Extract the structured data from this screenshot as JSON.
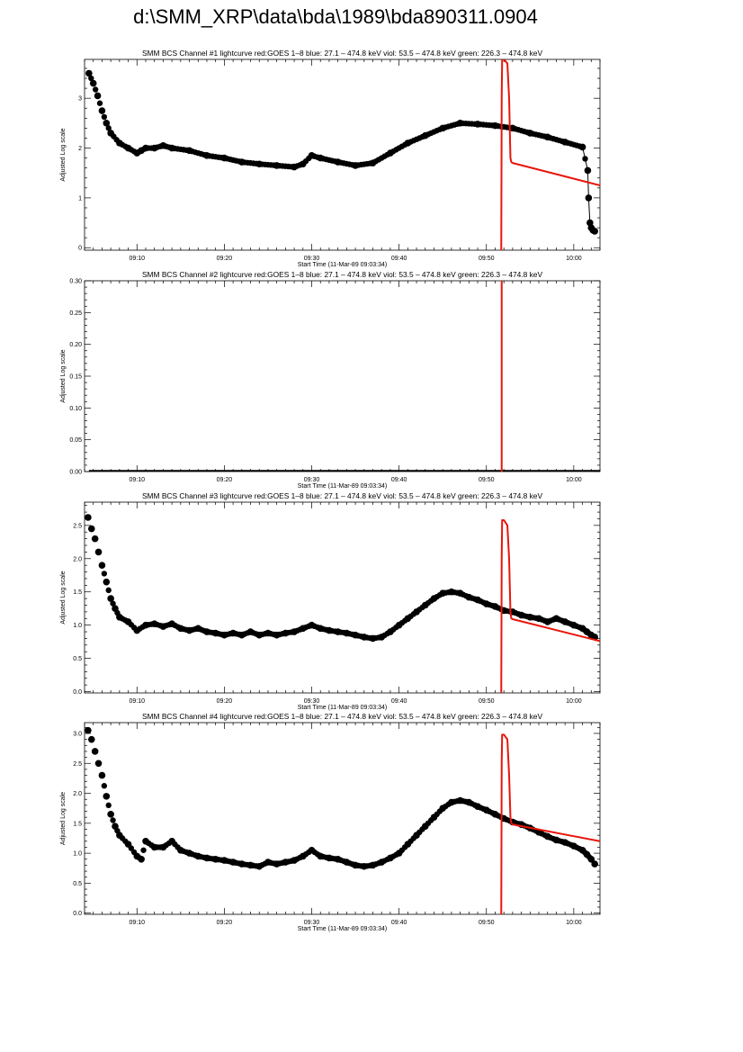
{
  "page": {
    "title": "d:\\SMM_XRP\\data\\bda\\1989\\bda890311.0904"
  },
  "colors": {
    "data": "#000000",
    "goes": "#e8160c",
    "axis": "#000000"
  },
  "chart_data": [
    {
      "type": "scatter",
      "title": "SMM BCS Channel #1 lightcurve  red:GOES 1–8  blue: 27.1 – 474.8 keV  viol: 53.5 – 474.8 keV  green: 226.3 – 474.8 keV",
      "xlabel": "Start Time (11-Mar-89 09:03:34)",
      "ylabel": "Adjusted Log scale",
      "xlim_minutes": [
        544,
        603
      ],
      "ylim": [
        -0.05,
        3.78
      ],
      "xticks": [
        {
          "minute": 550,
          "label": "09:10"
        },
        {
          "minute": 560,
          "label": "09:20"
        },
        {
          "minute": 570,
          "label": "09:30"
        },
        {
          "minute": 580,
          "label": "09:40"
        },
        {
          "minute": 590,
          "label": "09:50"
        },
        {
          "minute": 600,
          "label": "10:00"
        }
      ],
      "yticks": [
        {
          "v": 0,
          "label": "0"
        },
        {
          "v": 1,
          "label": "1"
        },
        {
          "v": 2,
          "label": "2"
        },
        {
          "v": 3,
          "label": "3"
        }
      ],
      "ytick_step": 1,
      "data_series": {
        "name": "",
        "x": [
          544.5,
          545,
          545.5,
          546,
          546.5,
          547,
          548,
          549,
          550,
          550.5,
          551,
          552,
          553,
          554,
          556,
          558,
          560,
          562,
          564,
          566,
          568,
          569,
          570,
          571,
          573,
          575,
          577,
          579,
          581,
          583,
          585,
          587,
          589,
          591,
          593,
          595,
          597,
          599,
          601,
          601.6,
          601.7,
          601.85,
          602,
          602.2,
          602.4
        ],
        "y": [
          3.5,
          3.3,
          3.05,
          2.75,
          2.5,
          2.3,
          2.1,
          2.0,
          1.9,
          1.95,
          2.0,
          2.0,
          2.05,
          2.0,
          1.95,
          1.85,
          1.8,
          1.72,
          1.68,
          1.65,
          1.62,
          1.68,
          1.85,
          1.8,
          1.72,
          1.65,
          1.7,
          1.9,
          2.1,
          2.25,
          2.4,
          2.5,
          2.48,
          2.45,
          2.4,
          2.3,
          2.22,
          2.12,
          2.02,
          1.55,
          1.0,
          0.5,
          0.4,
          0.35,
          0.33
        ],
        "connect_from_index": 38
      },
      "goes_series": {
        "name": "",
        "x": [
          591.7,
          591.75,
          591.8,
          592.0,
          592.4,
          592.6,
          592.75,
          592.85,
          593.0,
          603.0
        ],
        "y": [
          -0.05,
          3.0,
          3.78,
          3.78,
          3.7,
          3.0,
          1.8,
          1.72,
          1.7,
          1.25
        ]
      }
    },
    {
      "type": "scatter",
      "title": "SMM BCS Channel #2 lightcurve  red:GOES 1–8  blue: 27.1 – 474.8 keV  viol: 53.5 – 474.8 keV  green: 226.3 – 474.8 keV",
      "xlabel": "Start Time (11-Mar-89 09:03:34)",
      "ylabel": "Adjusted Log scale",
      "xlim_minutes": [
        544,
        603
      ],
      "ylim": [
        0,
        0.3
      ],
      "xticks": [
        {
          "minute": 550,
          "label": "09:10"
        },
        {
          "minute": 560,
          "label": "09:20"
        },
        {
          "minute": 570,
          "label": "09:30"
        },
        {
          "minute": 580,
          "label": "09:40"
        },
        {
          "minute": 590,
          "label": "09:50"
        },
        {
          "minute": 600,
          "label": "10:00"
        }
      ],
      "yticks": [
        {
          "v": 0,
          "label": "0.00"
        },
        {
          "v": 0.05,
          "label": "0.05"
        },
        {
          "v": 0.1,
          "label": "0.10"
        },
        {
          "v": 0.15,
          "label": "0.15"
        },
        {
          "v": 0.2,
          "label": "0.20"
        },
        {
          "v": 0.25,
          "label": "0.25"
        },
        {
          "v": 0.3,
          "label": "0.30"
        }
      ],
      "ytick_step": 0.05,
      "data_series": {
        "name": "",
        "x": [
          544.5,
          603
        ],
        "y": [
          0,
          0
        ],
        "flat": true
      },
      "goes_series": {
        "name": "",
        "x": [
          591.75,
          591.75
        ],
        "y": [
          0,
          0.3
        ]
      }
    },
    {
      "type": "scatter",
      "title": "SMM BCS Channel #3 lightcurve  red:GOES 1–8  blue: 27.1 – 474.8 keV  viol: 53.5 – 474.8 keV  green: 226.3 – 474.8 keV",
      "xlabel": "Start Time (11-Mar-89 09:03:34)",
      "ylabel": "Adjusted Log scale",
      "xlim_minutes": [
        544,
        603
      ],
      "ylim": [
        -0.02,
        2.85
      ],
      "xticks": [
        {
          "minute": 550,
          "label": "09:10"
        },
        {
          "minute": 560,
          "label": "09:20"
        },
        {
          "minute": 570,
          "label": "09:30"
        },
        {
          "minute": 580,
          "label": "09:40"
        },
        {
          "minute": 590,
          "label": "09:50"
        },
        {
          "minute": 600,
          "label": "10:00"
        }
      ],
      "yticks": [
        {
          "v": 0,
          "label": "0.0"
        },
        {
          "v": 0.5,
          "label": "0.5"
        },
        {
          "v": 1,
          "label": "1.0"
        },
        {
          "v": 1.5,
          "label": "1.5"
        },
        {
          "v": 2,
          "label": "2.0"
        },
        {
          "v": 2.5,
          "label": "2.5"
        }
      ],
      "ytick_step": 0.5,
      "data_series": {
        "name": "",
        "x": [
          544.4,
          544.8,
          545.2,
          545.6,
          546,
          546.5,
          547,
          547.5,
          548,
          549,
          550,
          551,
          552,
          553,
          554,
          555,
          556,
          557,
          558,
          559,
          560,
          561,
          562,
          563,
          564,
          565,
          566,
          567,
          568,
          569,
          570,
          571,
          572,
          573,
          574,
          575,
          576,
          577,
          578,
          579,
          580,
          581,
          582,
          583,
          584,
          585,
          586,
          587,
          588,
          589,
          590,
          591,
          592,
          593,
          594,
          595,
          596,
          597,
          598,
          599,
          600,
          601,
          601.5,
          602,
          602.4
        ],
        "y": [
          2.62,
          2.45,
          2.3,
          2.1,
          1.9,
          1.65,
          1.4,
          1.25,
          1.12,
          1.05,
          0.92,
          1.0,
          1.02,
          0.98,
          1.02,
          0.95,
          0.92,
          0.95,
          0.9,
          0.88,
          0.85,
          0.88,
          0.85,
          0.9,
          0.85,
          0.88,
          0.85,
          0.88,
          0.9,
          0.95,
          1.0,
          0.95,
          0.92,
          0.9,
          0.88,
          0.85,
          0.82,
          0.8,
          0.82,
          0.9,
          1.0,
          1.1,
          1.2,
          1.3,
          1.4,
          1.48,
          1.5,
          1.48,
          1.42,
          1.38,
          1.32,
          1.28,
          1.22,
          1.2,
          1.15,
          1.12,
          1.1,
          1.05,
          1.1,
          1.05,
          1.0,
          0.95,
          0.9,
          0.85,
          0.82
        ]
      },
      "goes_series": {
        "name": "",
        "x": [
          591.7,
          591.75,
          591.8,
          592.0,
          592.4,
          592.6,
          592.75,
          592.85,
          593.0,
          603.0
        ],
        "y": [
          -0.02,
          2.0,
          2.58,
          2.58,
          2.5,
          2.0,
          1.2,
          1.1,
          1.09,
          0.76
        ]
      }
    },
    {
      "type": "scatter",
      "title": "SMM BCS Channel #4 lightcurve  red:GOES 1–8  blue: 27.1 – 474.8 keV  viol: 53.5 – 474.8 keV  green: 226.3 – 474.8 keV",
      "xlabel": "Start Time (11-Mar-89 09:03:34)",
      "ylabel": "Adjusted Log scale",
      "xlim_minutes": [
        544,
        603
      ],
      "ylim": [
        -0.02,
        3.18
      ],
      "xticks": [
        {
          "minute": 550,
          "label": "09:10"
        },
        {
          "minute": 560,
          "label": "09:20"
        },
        {
          "minute": 570,
          "label": "09:30"
        },
        {
          "minute": 580,
          "label": "09:40"
        },
        {
          "minute": 590,
          "label": "09:50"
        },
        {
          "minute": 600,
          "label": "10:00"
        }
      ],
      "yticks": [
        {
          "v": 0,
          "label": "0.0"
        },
        {
          "v": 0.5,
          "label": "0.5"
        },
        {
          "v": 1,
          "label": "1.0"
        },
        {
          "v": 1.5,
          "label": "1.5"
        },
        {
          "v": 2,
          "label": "2.0"
        },
        {
          "v": 2.5,
          "label": "2.5"
        },
        {
          "v": 3,
          "label": "3.0"
        }
      ],
      "ytick_step": 0.5,
      "data_series": {
        "name": "",
        "x": [
          544.4,
          544.8,
          545.2,
          545.6,
          546,
          546.5,
          547,
          547.5,
          548,
          549,
          550,
          550.5,
          551,
          552,
          553,
          554,
          555,
          556,
          557,
          558,
          559,
          560,
          561,
          562,
          563,
          564,
          565,
          566,
          567,
          568,
          569,
          570,
          571,
          572,
          573,
          574,
          575,
          576,
          577,
          578,
          579,
          580,
          581,
          582,
          583,
          584,
          585,
          586,
          587,
          588,
          589,
          590,
          591,
          592,
          593,
          594,
          595,
          596,
          597,
          598,
          599,
          600,
          601,
          601.5,
          602,
          602.4
        ],
        "y": [
          3.05,
          2.9,
          2.7,
          2.5,
          2.3,
          1.95,
          1.65,
          1.45,
          1.3,
          1.15,
          0.95,
          0.9,
          1.2,
          1.1,
          1.1,
          1.2,
          1.05,
          1.0,
          0.95,
          0.92,
          0.9,
          0.88,
          0.85,
          0.82,
          0.8,
          0.78,
          0.85,
          0.82,
          0.85,
          0.88,
          0.95,
          1.05,
          0.95,
          0.92,
          0.9,
          0.85,
          0.8,
          0.78,
          0.8,
          0.85,
          0.92,
          1.0,
          1.15,
          1.3,
          1.45,
          1.6,
          1.75,
          1.85,
          1.88,
          1.85,
          1.78,
          1.72,
          1.65,
          1.58,
          1.52,
          1.48,
          1.42,
          1.35,
          1.28,
          1.22,
          1.18,
          1.12,
          1.05,
          0.98,
          0.9,
          0.82
        ]
      },
      "goes_series": {
        "name": "",
        "x": [
          591.7,
          591.75,
          591.8,
          592.0,
          592.4,
          592.6,
          592.75,
          592.85,
          593.0,
          603.0
        ],
        "y": [
          -0.02,
          2.5,
          2.98,
          2.98,
          2.9,
          2.3,
          1.6,
          1.5,
          1.48,
          1.2
        ]
      }
    }
  ]
}
